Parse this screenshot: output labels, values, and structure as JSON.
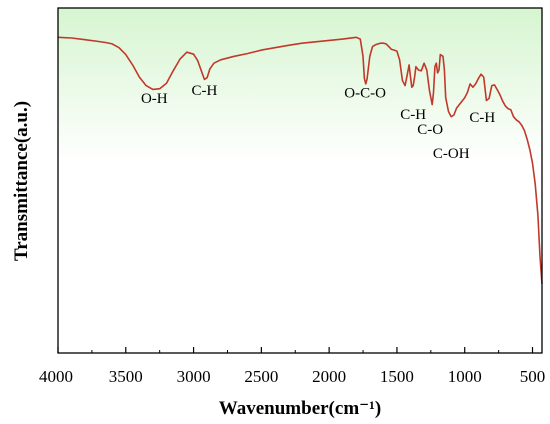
{
  "chart_data": {
    "type": "line",
    "title": "",
    "xlabel": "Wavenumber(cm⁻¹)",
    "ylabel": "Transmittance(a.u.)",
    "xlim": [
      4000,
      430
    ],
    "x_reversed": true,
    "ylim": [
      0,
      1
    ],
    "grid": false,
    "legend": "none",
    "line_color": "#c0392b",
    "background_gradient": [
      "#d6f5d0",
      "#ffffff"
    ],
    "xticks": [
      4000,
      3500,
      3000,
      2500,
      2000,
      1500,
      1000,
      500
    ],
    "xtick_labels": [
      "4000",
      "3500",
      "3000",
      "2500",
      "2000",
      "1500",
      "1000",
      "500"
    ],
    "series": [
      {
        "x": [
          4000,
          3900,
          3800,
          3700,
          3650,
          3600,
          3550,
          3500,
          3450,
          3400,
          3350,
          3300,
          3250,
          3200,
          3150,
          3100,
          3050,
          3000,
          2970,
          2940,
          2920,
          2900,
          2880,
          2850,
          2800,
          2700,
          2600,
          2500,
          2400,
          2300,
          2200,
          2100,
          2000,
          1900,
          1800,
          1770,
          1750,
          1740,
          1730,
          1720,
          1700,
          1680,
          1660,
          1640,
          1620,
          1600,
          1580,
          1560,
          1540,
          1520,
          1500,
          1480,
          1460,
          1440,
          1420,
          1410,
          1400,
          1390,
          1380,
          1370,
          1360,
          1340,
          1320,
          1300,
          1280,
          1260,
          1240,
          1230,
          1220,
          1210,
          1200,
          1190,
          1180,
          1160,
          1150,
          1140,
          1120,
          1100,
          1080,
          1060,
          1040,
          1020,
          1000,
          980,
          960,
          940,
          920,
          900,
          880,
          860,
          840,
          820,
          800,
          780,
          760,
          740,
          720,
          700,
          680,
          660,
          640,
          620,
          600,
          580,
          560,
          540,
          520,
          500,
          480,
          460,
          445,
          430
        ],
        "y": [
          0.915,
          0.913,
          0.908,
          0.903,
          0.9,
          0.896,
          0.885,
          0.865,
          0.835,
          0.8,
          0.775,
          0.764,
          0.766,
          0.782,
          0.818,
          0.852,
          0.872,
          0.866,
          0.848,
          0.815,
          0.793,
          0.798,
          0.823,
          0.84,
          0.85,
          0.86,
          0.868,
          0.878,
          0.885,
          0.892,
          0.898,
          0.902,
          0.906,
          0.91,
          0.915,
          0.91,
          0.86,
          0.795,
          0.78,
          0.795,
          0.86,
          0.888,
          0.893,
          0.896,
          0.898,
          0.898,
          0.896,
          0.888,
          0.88,
          0.878,
          0.875,
          0.85,
          0.79,
          0.775,
          0.815,
          0.835,
          0.8,
          0.77,
          0.775,
          0.8,
          0.83,
          0.82,
          0.818,
          0.84,
          0.82,
          0.76,
          0.72,
          0.755,
          0.83,
          0.84,
          0.812,
          0.82,
          0.865,
          0.86,
          0.82,
          0.74,
          0.7,
          0.685,
          0.69,
          0.71,
          0.72,
          0.73,
          0.74,
          0.755,
          0.78,
          0.77,
          0.78,
          0.795,
          0.808,
          0.8,
          0.732,
          0.738,
          0.775,
          0.777,
          0.763,
          0.748,
          0.73,
          0.716,
          0.708,
          0.705,
          0.685,
          0.676,
          0.67,
          0.66,
          0.645,
          0.62,
          0.59,
          0.55,
          0.49,
          0.4,
          0.28,
          0.2
        ]
      }
    ],
    "annotations": [
      {
        "text": "O-H",
        "x": 3290,
        "y": 0.725
      },
      {
        "text": "C-H",
        "x": 2920,
        "y": 0.748
      },
      {
        "text": "O-C-O",
        "x": 1735,
        "y": 0.74
      },
      {
        "text": "C-H",
        "x": 1380,
        "y": 0.678
      },
      {
        "text": "C-O",
        "x": 1255,
        "y": 0.635
      },
      {
        "text": "C-OH",
        "x": 1100,
        "y": 0.565
      },
      {
        "text": "C-H",
        "x": 870,
        "y": 0.67
      }
    ]
  }
}
